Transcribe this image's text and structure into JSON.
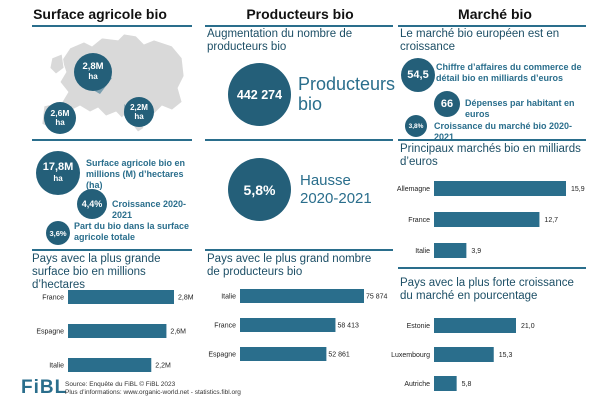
{
  "columns": {
    "surface": "Surface agricole bio",
    "producteurs": "Producteurs bio",
    "marche": "Marché bio"
  },
  "map": {
    "bubble_fr_value": "2,8M",
    "bubble_fr_unit": "ha",
    "bubble_es_value": "2,6M",
    "bubble_es_unit": "ha",
    "bubble_it_value": "2,2M",
    "bubble_it_unit": "ha"
  },
  "surface_kpis": {
    "total_value": "17,8M",
    "total_unit": "ha",
    "total_label": "Surface agricole bio en millions (M) d’hectares (ha)",
    "growth_value": "4,4%",
    "growth_label": "Croissance 2020-2021",
    "share_value": "3,6%",
    "share_label": "Part du bio dans la surface agricole totale"
  },
  "producteurs_kpis": {
    "section_title": "Augmentation du nombre de producteurs bio",
    "count_value": "442 274",
    "count_label": "Producteurs bio",
    "rise_value": "5,8%",
    "rise_label": "Hausse 2020-2021"
  },
  "marche_kpis": {
    "section_title": "Le marché bio européen est en croissance",
    "sales_value": "54,5",
    "sales_label": "Chiffre d’affaires du commerce de détail bio en milliards d’euros",
    "per_capita_value": "66",
    "per_capita_label": "Dépenses par habitant en euros",
    "growth_value": "3,8%",
    "growth_label": "Croissance du marché bio 2020-2021"
  },
  "chart_data": [
    {
      "type": "bar",
      "orientation": "horizontal",
      "title": "Pays avec la plus grande surface bio en millions d’hectares",
      "categories": [
        "France",
        "Espagne",
        "Italie"
      ],
      "values": [
        2.8,
        2.6,
        2.2
      ],
      "value_labels": [
        "2,8M",
        "2,6M",
        "2,2M"
      ],
      "xlim": [
        0,
        2.8
      ],
      "color": "#2a6e8c"
    },
    {
      "type": "bar",
      "orientation": "horizontal",
      "title": "Pays avec le plus grand nombre de producteurs bio",
      "categories": [
        "Italie",
        "France",
        "Espagne"
      ],
      "values": [
        75874,
        58413,
        52861
      ],
      "value_labels": [
        "75 874",
        "58 413",
        "52 861"
      ],
      "xlim": [
        0,
        75874
      ],
      "color": "#2a6e8c"
    },
    {
      "type": "bar",
      "orientation": "horizontal",
      "title": "Principaux marchés bio en milliards d’euros",
      "categories": [
        "Allemagne",
        "France",
        "Italie"
      ],
      "values": [
        15.9,
        12.7,
        3.9
      ],
      "value_labels": [
        "15,9",
        "12,7",
        "3,9"
      ],
      "xlim": [
        0,
        15.9
      ],
      "color": "#2a6e8c"
    },
    {
      "type": "bar",
      "orientation": "horizontal",
      "title": "Pays avec la plus forte croissance du marché en pourcentage",
      "categories": [
        "Estonie",
        "Luxembourg",
        "Autriche"
      ],
      "values": [
        21.0,
        15.3,
        5.8
      ],
      "value_labels": [
        "21,0",
        "15,3",
        "5,8"
      ],
      "xlim": [
        0,
        21.0
      ],
      "color": "#2a6e8c"
    }
  ],
  "footer": {
    "logo": "FiBL",
    "source": "Source: Enquête du FiBL © FiBL 2023",
    "more_info": "Plus d’informations: www.organic-world.net - statistics.fibl.org"
  },
  "colors": {
    "accent": "#2a6e8c",
    "circle": "#245f79",
    "map_land": "#d9d9d9"
  }
}
